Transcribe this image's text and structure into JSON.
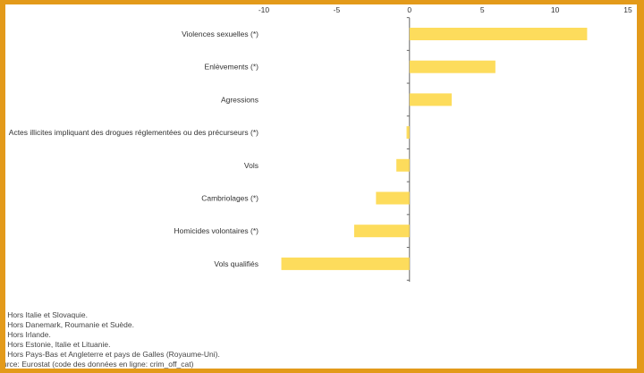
{
  "chart_data": {
    "type": "bar",
    "orientation": "horizontal",
    "title": "",
    "xlabel": "",
    "ylabel": "",
    "xlim": [
      -10,
      15
    ],
    "xticks": [
      "-10",
      "-5",
      "0",
      "5",
      "10",
      "15"
    ],
    "grid": false,
    "categories": [
      "Violences sexuelles (*)",
      "Enlèvements (*)",
      "Agressions",
      "Actes illicites impliquant des drogues réglementées ou des précurseurs (*)",
      "Vols",
      "Cambriolages (*)",
      "Homicides volontaires (*)",
      "Vols qualifiés"
    ],
    "values": [
      12.2,
      5.9,
      2.9,
      -0.2,
      -0.9,
      -2.3,
      -3.8,
      -8.8
    ],
    "bar_color": "#fddc5c"
  },
  "notes": [
    ") Hors Italie et Slovaquie.",
    ") Hors Danemark, Roumanie et Suède.",
    ") Hors Irlande.",
    ") Hors Estonie, Italie et Lituanie.",
    ") Hors Pays-Bas et Angleterre et pays de Galles (Royaume-Uni).",
    "urce: Eurostat (code des données en ligne: crim_off_cat)"
  ]
}
